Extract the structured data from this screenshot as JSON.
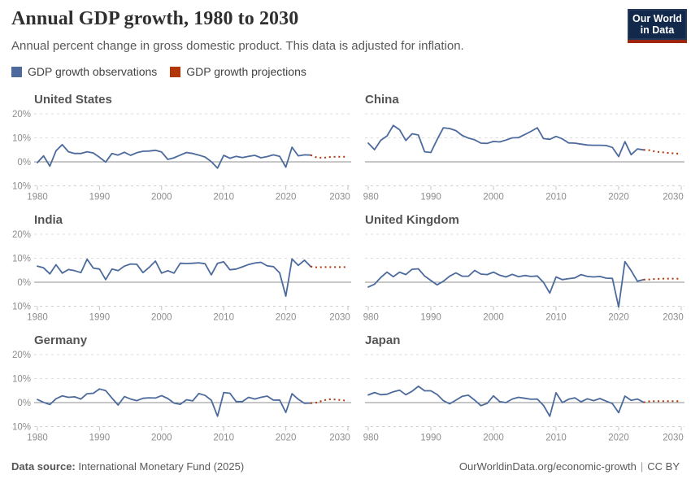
{
  "header": {
    "title": "Annual GDP growth, 1980 to 2030",
    "subtitle": "Annual percent change in gross domestic product. This data is adjusted for inflation.",
    "logo": {
      "line1": "Our World",
      "line2": "in Data"
    }
  },
  "legend": {
    "observations_label": "GDP growth observations",
    "projections_label": "GDP growth projections"
  },
  "colors": {
    "observations": "#4C6A9C",
    "projections": "#B13507",
    "logo_bg": "#12294B",
    "logo_stripe": "#A0250F",
    "gridline": "#dcdcdc",
    "zero_line": "#8f8f8f",
    "axis_line": "#cfcfcf",
    "tick_text": "#8d8d8d"
  },
  "axes": {
    "xlim": [
      1980,
      2030
    ],
    "ylim": [
      -10,
      20
    ],
    "x_ticks": [
      1980,
      1990,
      2000,
      2010,
      2020,
      2030
    ],
    "y_ticks": [
      20,
      10,
      0,
      -10
    ],
    "y_tick_labels": [
      "20%",
      "10%",
      "0%",
      "-10%"
    ],
    "grid": true
  },
  "chart_data": [
    {
      "type": "line",
      "title": "United States",
      "observations": {
        "start_year": 1980,
        "end_year": 2024,
        "values": [
          -0.3,
          2.5,
          -1.8,
          4.6,
          7.2,
          4.2,
          3.5,
          3.5,
          4.2,
          3.7,
          1.9,
          -0.1,
          3.5,
          2.8,
          4.0,
          2.7,
          3.8,
          4.4,
          4.5,
          4.8,
          4.1,
          1.0,
          1.7,
          2.8,
          3.9,
          3.5,
          2.8,
          2.0,
          0.1,
          -2.6,
          2.7,
          1.5,
          2.3,
          1.8,
          2.3,
          2.7,
          1.7,
          2.2,
          2.9,
          2.3,
          -2.2,
          6.1,
          2.5,
          2.9,
          2.8
        ]
      },
      "projections": {
        "start_year": 2024,
        "end_year": 2030,
        "values": [
          2.8,
          1.8,
          1.7,
          2.0,
          2.1,
          2.1,
          2.1
        ]
      }
    },
    {
      "type": "line",
      "title": "China",
      "observations": {
        "start_year": 1980,
        "end_year": 2024,
        "values": [
          7.8,
          5.1,
          9.0,
          10.8,
          15.2,
          13.4,
          8.9,
          11.7,
          11.2,
          4.2,
          3.9,
          9.3,
          14.2,
          13.9,
          13.0,
          11.0,
          9.9,
          9.2,
          7.8,
          7.7,
          8.5,
          8.3,
          9.1,
          10.0,
          10.1,
          11.4,
          12.7,
          14.2,
          9.7,
          9.4,
          10.6,
          9.6,
          7.9,
          7.8,
          7.4,
          7.0,
          6.9,
          6.9,
          6.8,
          6.0,
          2.2,
          8.4,
          3.0,
          5.4,
          5.0
        ]
      },
      "projections": {
        "start_year": 2024,
        "end_year": 2030,
        "values": [
          5.0,
          4.8,
          4.2,
          4.0,
          3.7,
          3.5,
          3.4
        ]
      }
    },
    {
      "type": "line",
      "title": "India",
      "observations": {
        "start_year": 1980,
        "end_year": 2024,
        "values": [
          6.7,
          6.0,
          3.5,
          7.3,
          3.8,
          5.3,
          4.8,
          4.0,
          9.6,
          5.9,
          5.5,
          1.1,
          5.5,
          4.8,
          6.7,
          7.6,
          7.5,
          4.0,
          6.2,
          8.8,
          3.8,
          4.8,
          3.8,
          7.9,
          7.8,
          7.9,
          8.1,
          7.7,
          3.1,
          7.9,
          8.5,
          5.2,
          5.5,
          6.4,
          7.4,
          8.0,
          8.3,
          6.8,
          6.5,
          3.9,
          -5.8,
          9.7,
          7.0,
          9.2,
          6.5
        ]
      },
      "projections": {
        "start_year": 2024,
        "end_year": 2030,
        "values": [
          6.5,
          6.2,
          6.3,
          6.3,
          6.3,
          6.3,
          6.3
        ]
      }
    },
    {
      "type": "line",
      "title": "United Kingdom",
      "observations": {
        "start_year": 1980,
        "end_year": 2024,
        "values": [
          -2.0,
          -0.8,
          2.0,
          4.2,
          2.3,
          4.2,
          3.2,
          5.4,
          5.6,
          2.6,
          0.7,
          -1.1,
          0.4,
          2.5,
          3.9,
          2.5,
          2.5,
          4.9,
          3.4,
          3.2,
          4.2,
          2.9,
          2.2,
          3.3,
          2.3,
          2.8,
          2.4,
          2.6,
          -0.1,
          -4.5,
          2.2,
          1.1,
          1.5,
          1.8,
          3.2,
          2.4,
          2.2,
          2.4,
          1.7,
          1.6,
          -10.3,
          8.6,
          4.8,
          0.4,
          1.1
        ]
      },
      "projections": {
        "start_year": 2024,
        "end_year": 2030,
        "values": [
          1.1,
          1.2,
          1.4,
          1.5,
          1.5,
          1.5,
          1.4
        ]
      }
    },
    {
      "type": "line",
      "title": "Germany",
      "observations": {
        "start_year": 1980,
        "end_year": 2024,
        "values": [
          1.3,
          0.1,
          -0.8,
          1.6,
          2.8,
          2.2,
          2.4,
          1.5,
          3.7,
          3.9,
          5.7,
          5.0,
          1.9,
          -1.0,
          2.5,
          1.5,
          0.8,
          1.8,
          2.0,
          1.9,
          2.9,
          1.7,
          -0.2,
          -0.7,
          1.2,
          0.7,
          3.8,
          3.0,
          1.0,
          -5.7,
          4.2,
          3.9,
          0.4,
          0.4,
          2.2,
          1.5,
          2.2,
          2.7,
          1.0,
          1.1,
          -4.1,
          3.7,
          1.4,
          -0.3,
          -0.2
        ]
      },
      "projections": {
        "start_year": 2024,
        "end_year": 2030,
        "values": [
          -0.2,
          0.0,
          0.9,
          1.4,
          1.3,
          1.0,
          0.7
        ]
      }
    },
    {
      "type": "line",
      "title": "Japan",
      "observations": {
        "start_year": 1980,
        "end_year": 2024,
        "values": [
          3.2,
          4.2,
          3.3,
          3.5,
          4.5,
          5.2,
          3.3,
          4.7,
          6.8,
          4.9,
          4.9,
          3.4,
          0.8,
          -0.5,
          1.0,
          2.6,
          3.1,
          1.0,
          -1.3,
          -0.3,
          2.8,
          0.4,
          0.0,
          1.5,
          2.2,
          1.8,
          1.4,
          1.5,
          -1.2,
          -5.7,
          4.1,
          0.0,
          1.4,
          2.0,
          0.3,
          1.6,
          0.8,
          1.7,
          0.6,
          -0.4,
          -4.2,
          2.7,
          0.9,
          1.5,
          0.1
        ]
      },
      "projections": {
        "start_year": 2024,
        "end_year": 2030,
        "values": [
          0.1,
          0.6,
          0.6,
          0.6,
          0.6,
          0.6,
          0.6
        ]
      }
    }
  ],
  "footer": {
    "source_label": "Data source:",
    "source_value": "International Monetary Fund (2025)",
    "url": "OurWorldinData.org/economic-growth",
    "separator": "|",
    "license": "CC BY"
  }
}
